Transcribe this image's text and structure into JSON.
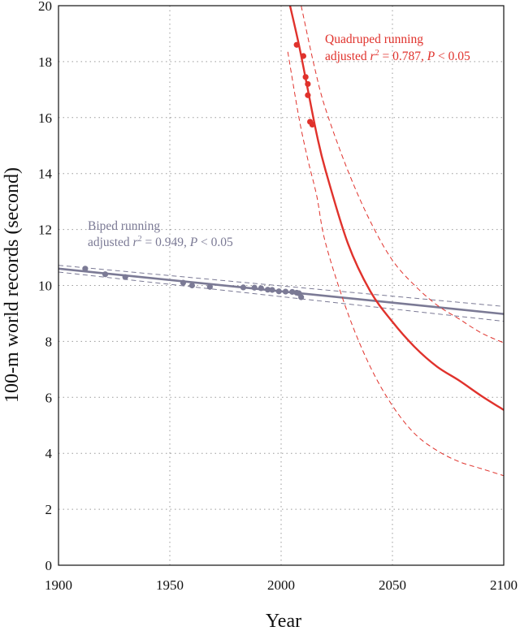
{
  "chart_data": {
    "type": "scatter",
    "xlabel": "Year",
    "ylabel": "100-m world records (second)",
    "xlim": [
      1900,
      2100
    ],
    "ylim": [
      0,
      20
    ],
    "xticks": [
      1900,
      1950,
      2000,
      2050,
      2100
    ],
    "yticks": [
      0,
      2,
      4,
      6,
      8,
      10,
      12,
      14,
      16,
      18,
      20
    ],
    "grid": true,
    "colors": {
      "biped": "#7b7a95",
      "quadruped": "#e0322c"
    },
    "series": [
      {
        "name": "Biped running",
        "stat_line": "adjusted r² = 0.949, P < 0.05",
        "stat_parts": [
          "adjusted ",
          "r",
          "2",
          " = 0.949, ",
          "P",
          " < 0.05"
        ],
        "points": [
          [
            1912,
            10.6
          ],
          [
            1921,
            10.4
          ],
          [
            1930,
            10.3
          ],
          [
            1956,
            10.1
          ],
          [
            1960,
            10.0
          ],
          [
            1968,
            9.95
          ],
          [
            1983,
            9.93
          ],
          [
            1988,
            9.92
          ],
          [
            1991,
            9.9
          ],
          [
            1994,
            9.85
          ],
          [
            1996,
            9.84
          ],
          [
            1999,
            9.79
          ],
          [
            2002,
            9.78
          ],
          [
            2005,
            9.77
          ],
          [
            2007,
            9.74
          ],
          [
            2008,
            9.72
          ],
          [
            2009,
            9.58
          ]
        ],
        "fit": [
          [
            1900,
            10.6
          ],
          [
            2100,
            8.98
          ]
        ],
        "ci_upper": [
          [
            1900,
            10.72
          ],
          [
            2100,
            9.25
          ]
        ],
        "ci_lower": [
          [
            1900,
            10.48
          ],
          [
            2100,
            8.72
          ]
        ]
      },
      {
        "name": "Quadruped running",
        "stat_line": "adjusted r² = 0.787, P < 0.05",
        "stat_parts": [
          "adjusted ",
          "r",
          "2",
          " = 0.787, ",
          "P",
          " < 0.05"
        ],
        "points": [
          [
            2007,
            18.6
          ],
          [
            2010,
            18.2
          ],
          [
            2011,
            17.45
          ],
          [
            2012,
            17.2
          ],
          [
            2012,
            16.8
          ],
          [
            2013,
            15.85
          ],
          [
            2014,
            15.75
          ]
        ],
        "fit": [
          [
            2004,
            20.0
          ],
          [
            2008,
            18.6
          ],
          [
            2012,
            17.0
          ],
          [
            2016,
            15.4
          ],
          [
            2020,
            14.1
          ],
          [
            2030,
            11.5
          ],
          [
            2040,
            9.8
          ],
          [
            2050,
            8.7
          ],
          [
            2060,
            7.8
          ],
          [
            2070,
            7.1
          ],
          [
            2080,
            6.6
          ],
          [
            2090,
            6.05
          ],
          [
            2100,
            5.55
          ]
        ],
        "ci_upper": [
          [
            2009,
            20.0
          ],
          [
            2015,
            17.8
          ],
          [
            2020,
            16.3
          ],
          [
            2030,
            14.1
          ],
          [
            2040,
            12.3
          ],
          [
            2050,
            10.9
          ],
          [
            2060,
            10.0
          ],
          [
            2070,
            9.3
          ],
          [
            2080,
            8.8
          ],
          [
            2090,
            8.3
          ],
          [
            2100,
            7.95
          ]
        ],
        "ci_lower": [
          [
            2003,
            18.35
          ],
          [
            2008,
            16.0
          ],
          [
            2012,
            14.5
          ],
          [
            2016,
            13.2
          ],
          [
            2020,
            11.5
          ],
          [
            2030,
            9.0
          ],
          [
            2040,
            7.1
          ],
          [
            2050,
            5.7
          ],
          [
            2060,
            4.7
          ],
          [
            2070,
            4.1
          ],
          [
            2080,
            3.7
          ],
          [
            2090,
            3.45
          ],
          [
            2100,
            3.2
          ]
        ]
      }
    ]
  }
}
